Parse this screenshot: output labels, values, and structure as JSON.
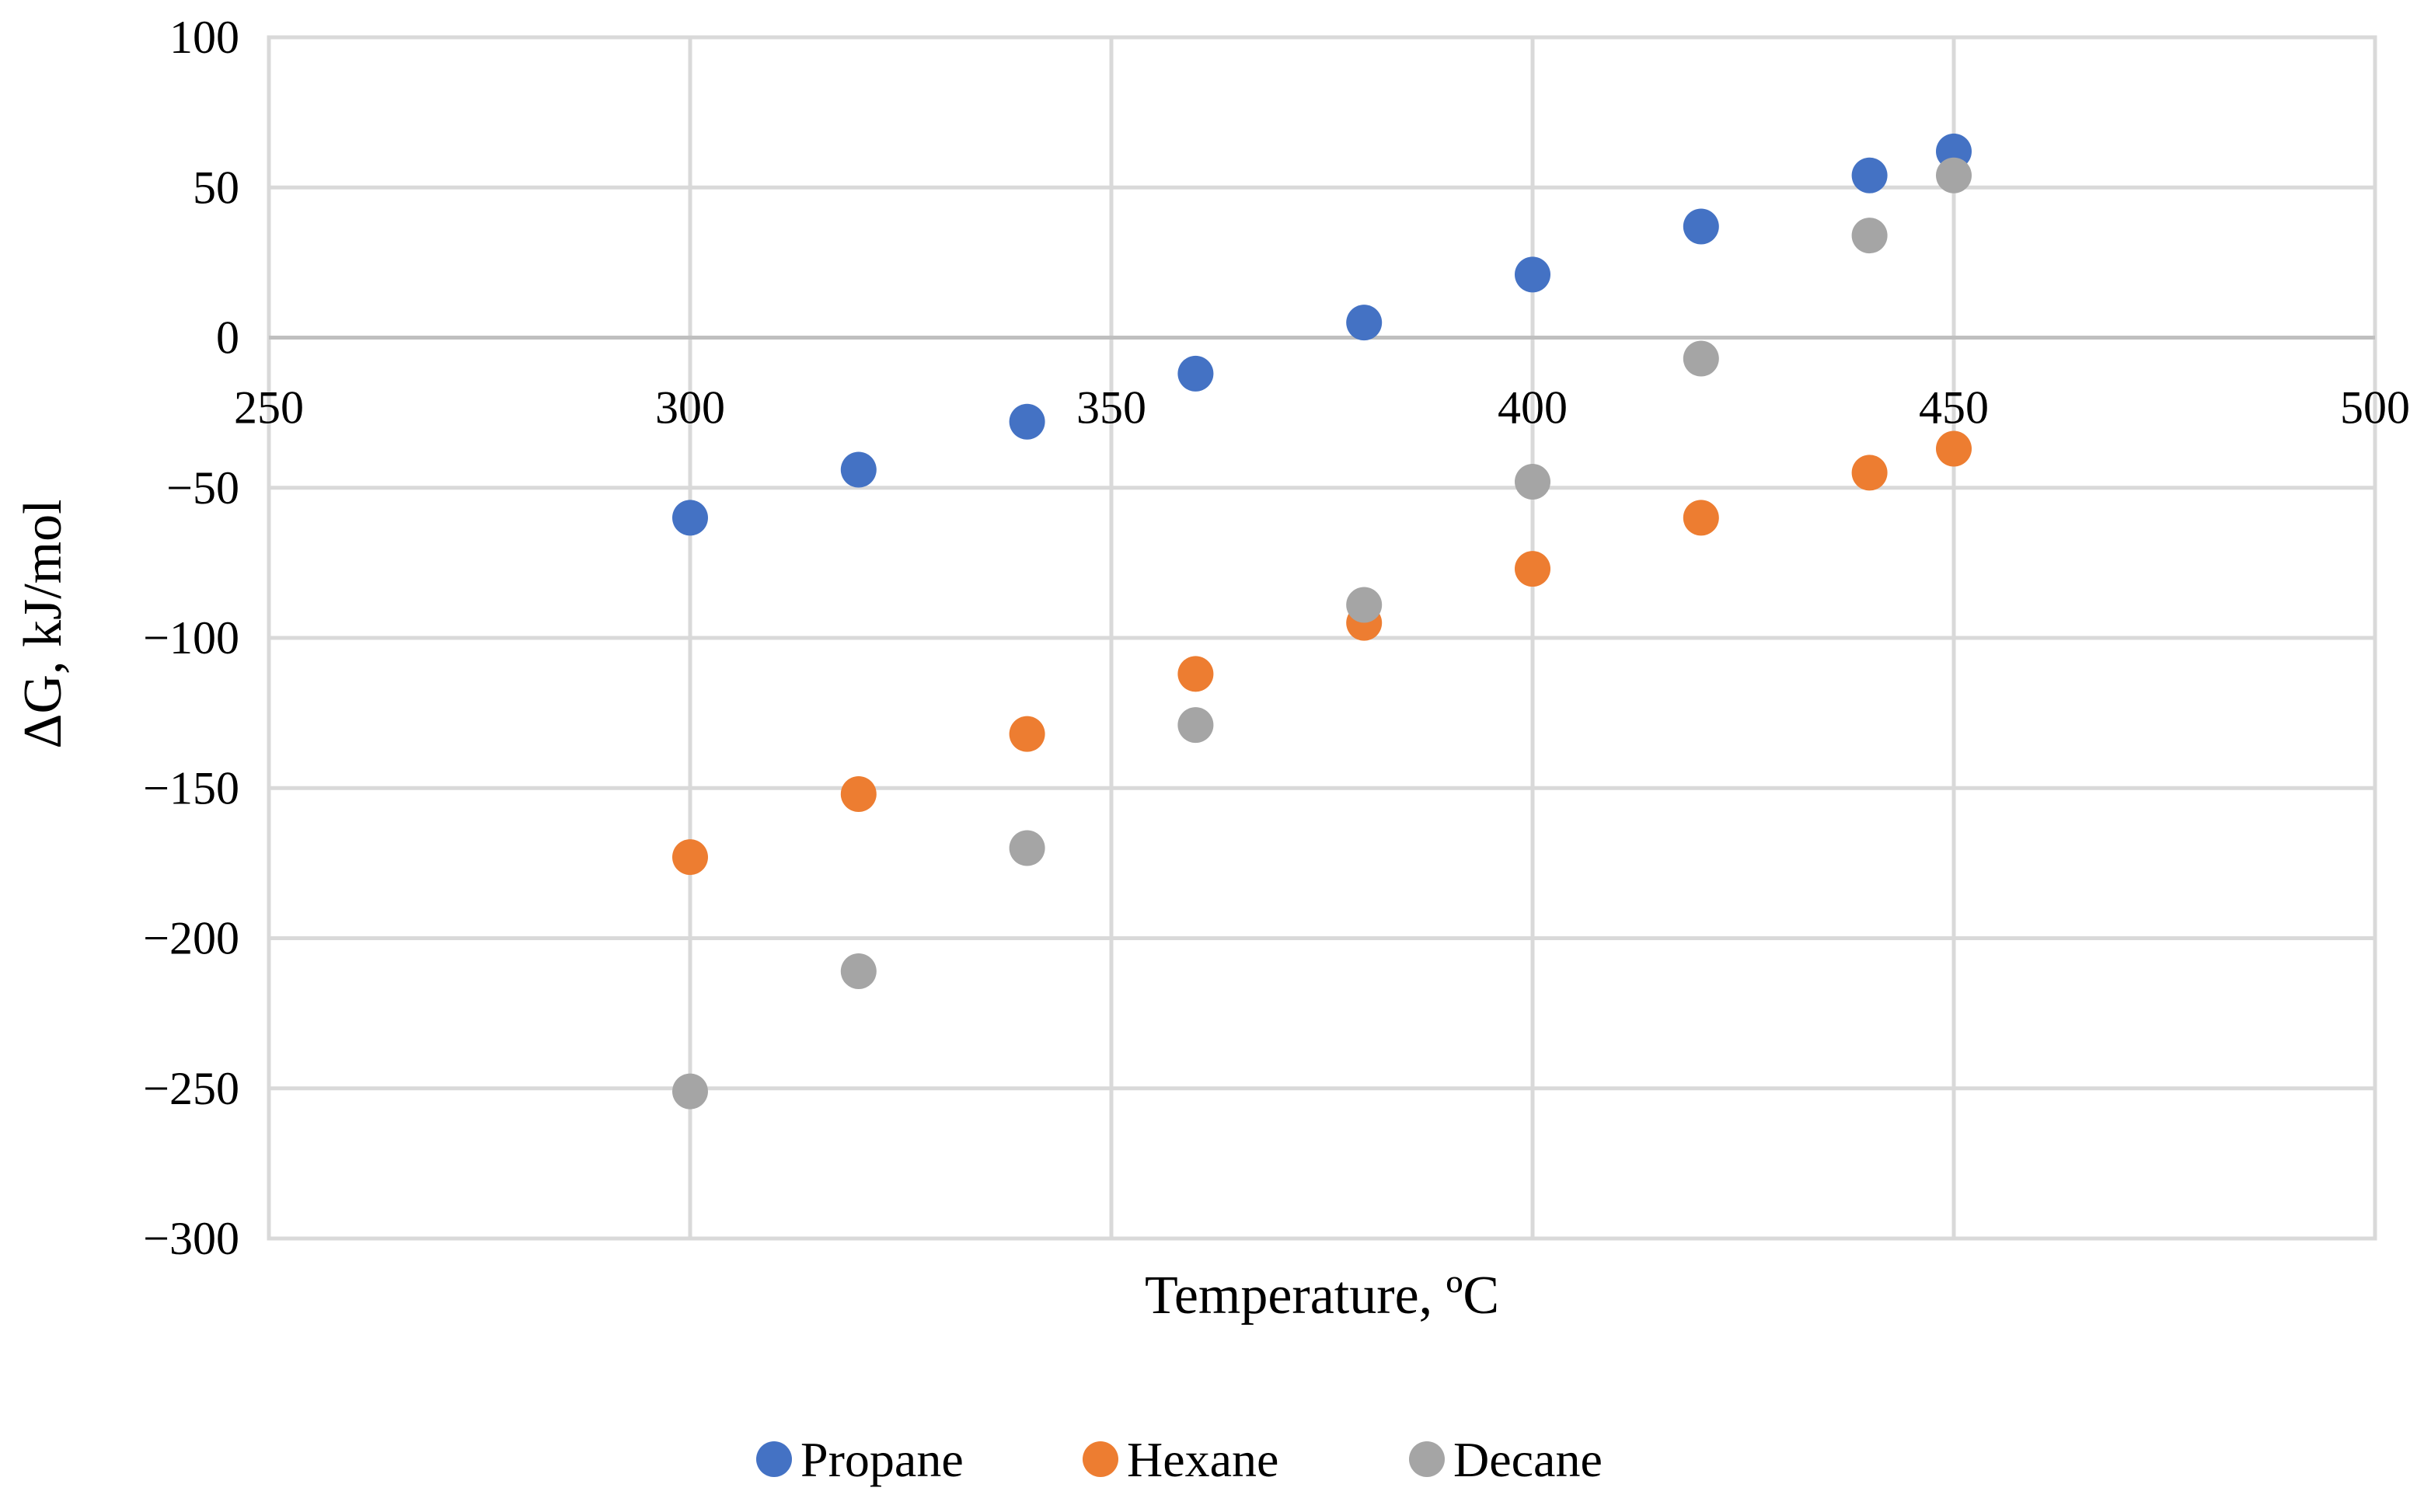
{
  "chart_data": {
    "type": "scatter",
    "title": "",
    "xlabel": "Temperature, ºC",
    "ylabel": "ΔG, kJ/mol",
    "xlim": [
      250,
      500
    ],
    "ylim": [
      -300,
      100
    ],
    "xticks": [
      250,
      300,
      350,
      400,
      450,
      500
    ],
    "yticks": [
      100,
      50,
      0,
      -50,
      -100,
      -150,
      -200,
      -250,
      -300
    ],
    "ytick_labels": [
      "100",
      "50",
      "0",
      "−50",
      "−100",
      "−150",
      "−200",
      "−250",
      "−300"
    ],
    "grid": true,
    "legend_position": "bottom",
    "series": [
      {
        "name": "Propane",
        "color": "#4472c4",
        "x": [
          300,
          320,
          340,
          360,
          380,
          400,
          420,
          440,
          450
        ],
        "y": [
          -60,
          -44,
          -28,
          -12,
          5,
          21,
          37,
          54,
          62
        ]
      },
      {
        "name": "Hexane",
        "color": "#ed7d31",
        "x": [
          300,
          320,
          340,
          360,
          380,
          400,
          420,
          440,
          450
        ],
        "y": [
          -173,
          -152,
          -132,
          -112,
          -95,
          -77,
          -60,
          -45,
          -37
        ]
      },
      {
        "name": "Decane",
        "color": "#a5a5a5",
        "x": [
          300,
          320,
          340,
          360,
          380,
          400,
          420,
          440,
          450
        ],
        "y": [
          -251,
          -211,
          -170,
          -129,
          -89,
          -48,
          -7,
          34,
          54
        ]
      }
    ]
  }
}
